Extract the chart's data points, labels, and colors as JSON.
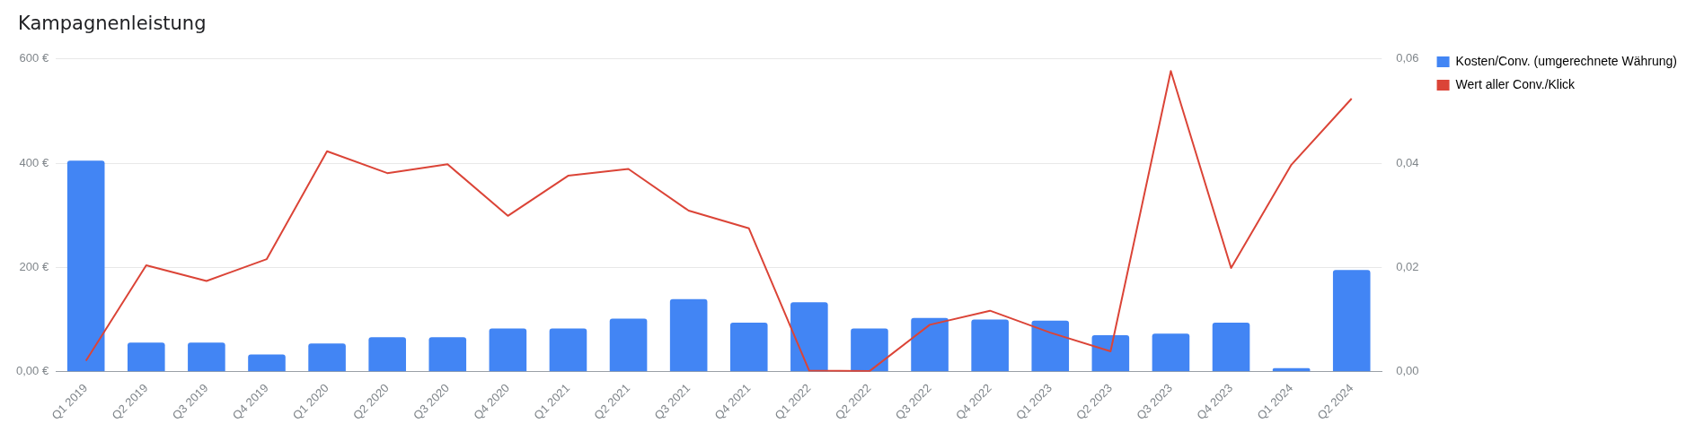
{
  "chart_data": {
    "type": "bar",
    "title": "Kampagnenleistung",
    "categories": [
      "Q1 2019",
      "Q2 2019",
      "Q3 2019",
      "Q4 2019",
      "Q1 2020",
      "Q2 2020",
      "Q3 2020",
      "Q4 2020",
      "Q1 2021",
      "Q2 2021",
      "Q3 2021",
      "Q4 2021",
      "Q1 2022",
      "Q2 2022",
      "Q3 2022",
      "Q4 2022",
      "Q1 2023",
      "Q2 2023",
      "Q3 2023",
      "Q4 2023",
      "Q1 2024",
      "Q2 2024"
    ],
    "series": [
      {
        "name": "Kosten/Conv. (umgerechnete Währung)",
        "color": "#4285f4",
        "values": [
          405,
          56,
          56,
          33,
          54,
          66,
          66,
          83,
          83,
          102,
          139,
          94,
          133,
          83,
          103,
          100,
          98,
          70,
          73,
          94,
          7,
          195
        ]
      },
      {
        "name": "Wert aller Conv./Klick",
        "type": "line",
        "axis": "y2",
        "color": "#db4437",
        "values": [
          0.0021,
          0.0204,
          0.0174,
          0.0216,
          0.0423,
          0.0381,
          0.0398,
          0.0299,
          0.0376,
          0.0389,
          0.0309,
          0.0275,
          0.0002,
          0.0001,
          0.009,
          0.0117,
          0.0075,
          0.0039,
          0.0577,
          0.0199,
          0.0397,
          0.0524
        ]
      }
    ],
    "ylim": [
      0,
      600
    ],
    "yticks": [
      {
        "value": 0,
        "label": "0,00 €"
      },
      {
        "value": 200,
        "label": "200 €"
      },
      {
        "value": 400,
        "label": "400 €"
      },
      {
        "value": 600,
        "label": "600 €"
      }
    ],
    "y2lim": [
      0,
      0.06
    ],
    "y2ticks": [
      {
        "value": 0,
        "label": "0,00"
      },
      {
        "value": 0.02,
        "label": "0,02"
      },
      {
        "value": 0.04,
        "label": "0,04"
      },
      {
        "value": 0.06,
        "label": "0,06"
      }
    ],
    "grid": "y",
    "legend": "right",
    "marker": "none"
  }
}
